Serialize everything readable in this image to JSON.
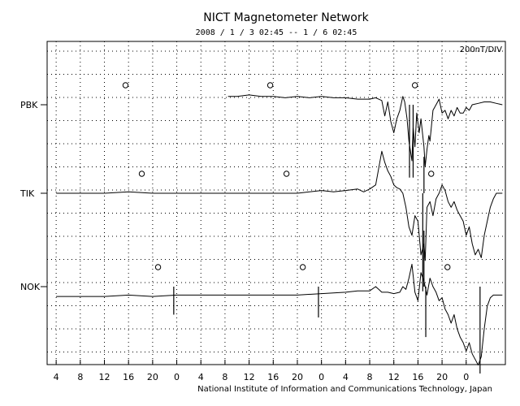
{
  "chart_data": {
    "type": "line",
    "title": "NICT Magnetometer Network",
    "subtitle": "2008 / 1 / 3  02:45 -- 1 / 6  02:45",
    "scale_label": "200nT/DIV",
    "credit": "National Institute of Information and Communications Technology, Japan",
    "x_tick_labels": [
      "4",
      "8",
      "12",
      "16",
      "20",
      "0",
      "4",
      "8",
      "12",
      "16",
      "20",
      "0",
      "4",
      "8",
      "12",
      "16",
      "20",
      "0"
    ],
    "grid": true,
    "stations": [
      {
        "name": "PBK",
        "noon_marker_hours": [
          11.5,
          35.5,
          59.5
        ],
        "trace": [
          [
            28.5,
            0.3
          ],
          [
            30,
            0.3
          ],
          [
            32,
            0.35
          ],
          [
            34,
            0.3
          ],
          [
            36,
            0.3
          ],
          [
            38,
            0.25
          ],
          [
            40,
            0.3
          ],
          [
            42,
            0.25
          ],
          [
            44,
            0.3
          ],
          [
            46,
            0.25
          ],
          [
            48,
            0.25
          ],
          [
            50,
            0.2
          ],
          [
            52,
            0.2
          ],
          [
            53,
            0.25
          ],
          [
            54,
            0.15
          ],
          [
            54.5,
            -0.4
          ],
          [
            55,
            0.1
          ],
          [
            55.5,
            -0.6
          ],
          [
            56,
            -1.0
          ],
          [
            56.5,
            -0.5
          ],
          [
            57,
            -0.2
          ],
          [
            57.5,
            0.3
          ],
          [
            57.8,
            0.1
          ],
          [
            58.2,
            -0.5
          ],
          [
            58.5,
            -1.3
          ],
          [
            59,
            -2.0
          ],
          [
            59.2,
            -0.8
          ],
          [
            59.5,
            -1.5
          ],
          [
            59.8,
            -0.3
          ],
          [
            60.2,
            -1.0
          ],
          [
            60.5,
            -0.5
          ],
          [
            61,
            -1.5
          ],
          [
            61.2,
            -2.2
          ],
          [
            61.5,
            -1.6
          ],
          [
            61.8,
            -1.1
          ],
          [
            62,
            -1.3
          ],
          [
            62.5,
            -0.2
          ],
          [
            63,
            0.0
          ],
          [
            63.5,
            0.2
          ],
          [
            64,
            -0.3
          ],
          [
            64.5,
            -0.2
          ],
          [
            65,
            -0.5
          ],
          [
            65.5,
            -0.2
          ],
          [
            66,
            -0.4
          ],
          [
            66.5,
            -0.1
          ],
          [
            67,
            -0.3
          ],
          [
            67.5,
            -0.3
          ],
          [
            68,
            -0.1
          ],
          [
            68.5,
            -0.2
          ],
          [
            69,
            0.0
          ],
          [
            70,
            0.05
          ],
          [
            71,
            0.1
          ],
          [
            72,
            0.1
          ],
          [
            73,
            0.05
          ],
          [
            74,
            0.0
          ]
        ],
        "spikes": [
          [
            58.6,
            -2.6
          ],
          [
            59.2,
            -2.6
          ]
        ]
      },
      {
        "name": "TIK",
        "noon_marker_hours": [
          14.2,
          38.2,
          62.2
        ],
        "trace": [
          [
            0,
            0.0
          ],
          [
            4,
            0.0
          ],
          [
            8,
            0.0
          ],
          [
            12,
            0.05
          ],
          [
            16,
            0.0
          ],
          [
            20,
            0.0
          ],
          [
            24,
            0.0
          ],
          [
            28,
            0.0
          ],
          [
            32,
            0.0
          ],
          [
            36,
            0.0
          ],
          [
            40,
            0.0
          ],
          [
            42,
            0.05
          ],
          [
            44,
            0.1
          ],
          [
            46,
            0.05
          ],
          [
            48,
            0.1
          ],
          [
            50,
            0.15
          ],
          [
            51,
            0.05
          ],
          [
            52,
            0.15
          ],
          [
            53,
            0.3
          ],
          [
            54,
            1.5
          ],
          [
            54.5,
            1.1
          ],
          [
            55,
            0.8
          ],
          [
            55.5,
            0.6
          ],
          [
            56,
            0.3
          ],
          [
            56.5,
            0.2
          ],
          [
            57,
            0.15
          ],
          [
            57.5,
            0.0
          ],
          [
            58,
            -0.5
          ],
          [
            58.5,
            -1.2
          ],
          [
            59,
            -1.5
          ],
          [
            59.5,
            -0.8
          ],
          [
            60,
            -1.0
          ],
          [
            60.5,
            -2.2
          ],
          [
            61,
            -1.8
          ],
          [
            61.2,
            -2.4
          ],
          [
            61.5,
            -0.5
          ],
          [
            62,
            -0.3
          ],
          [
            62.5,
            -0.8
          ],
          [
            63,
            -0.2
          ],
          [
            63.5,
            0.0
          ],
          [
            64,
            0.3
          ],
          [
            64.5,
            0.1
          ],
          [
            65,
            -0.3
          ],
          [
            65.5,
            -0.5
          ],
          [
            66,
            -0.3
          ],
          [
            66.5,
            -0.6
          ],
          [
            67,
            -0.8
          ],
          [
            67.5,
            -1.0
          ],
          [
            68,
            -1.5
          ],
          [
            68.5,
            -1.2
          ],
          [
            69,
            -1.8
          ],
          [
            69.5,
            -2.2
          ],
          [
            70,
            -2.0
          ],
          [
            70.5,
            -2.3
          ],
          [
            71,
            -1.5
          ],
          [
            71.5,
            -1.0
          ],
          [
            72,
            -0.5
          ],
          [
            72.5,
            -0.2
          ],
          [
            73,
            0.0
          ],
          [
            74,
            0.0
          ]
        ],
        "spikes": [
          [
            60.8,
            -3.5
          ],
          [
            61.0,
            1.3
          ]
        ]
      },
      {
        "name": "NOK",
        "noon_marker_hours": [
          16.9,
          40.9,
          64.9
        ],
        "trace": [
          [
            0,
            -0.35
          ],
          [
            4,
            -0.35
          ],
          [
            8,
            -0.35
          ],
          [
            12,
            -0.3
          ],
          [
            16,
            -0.35
          ],
          [
            20,
            -0.3
          ],
          [
            24,
            -0.3
          ],
          [
            28,
            -0.3
          ],
          [
            32,
            -0.3
          ],
          [
            36,
            -0.3
          ],
          [
            40,
            -0.3
          ],
          [
            44,
            -0.25
          ],
          [
            48,
            -0.2
          ],
          [
            50,
            -0.15
          ],
          [
            52,
            -0.15
          ],
          [
            53,
            0.0
          ],
          [
            53.5,
            -0.1
          ],
          [
            54,
            -0.2
          ],
          [
            55,
            -0.2
          ],
          [
            56,
            -0.25
          ],
          [
            57,
            -0.2
          ],
          [
            57.5,
            0.0
          ],
          [
            58,
            -0.1
          ],
          [
            58.5,
            0.3
          ],
          [
            59,
            0.8
          ],
          [
            59.5,
            -0.2
          ],
          [
            60,
            -0.5
          ],
          [
            60.5,
            0.5
          ],
          [
            61,
            0.2
          ],
          [
            61.5,
            -0.3
          ],
          [
            62,
            0.3
          ],
          [
            62.5,
            0.0
          ],
          [
            63,
            -0.2
          ],
          [
            63.5,
            -0.5
          ],
          [
            64,
            -0.4
          ],
          [
            64.5,
            -0.8
          ],
          [
            65,
            -1.0
          ],
          [
            65.5,
            -1.3
          ],
          [
            66,
            -1.0
          ],
          [
            66.5,
            -1.5
          ],
          [
            67,
            -1.8
          ],
          [
            67.5,
            -2.0
          ],
          [
            68,
            -2.3
          ],
          [
            68.5,
            -2.0
          ],
          [
            69,
            -2.4
          ],
          [
            69.5,
            -2.6
          ],
          [
            70,
            -2.8
          ],
          [
            70.5,
            -2.5
          ],
          [
            71,
            -1.5
          ],
          [
            71.5,
            -0.7
          ],
          [
            72,
            -0.4
          ],
          [
            72.5,
            -0.3
          ],
          [
            73,
            -0.3
          ],
          [
            74,
            -0.3
          ]
        ],
        "spikes": [
          [
            19.5,
            -1.0
          ],
          [
            43.5,
            -1.1
          ],
          [
            61.0,
            2.0
          ],
          [
            61.3,
            -1.8
          ],
          [
            70.3,
            -3.1
          ]
        ]
      }
    ],
    "x_range_hours": [
      -1.5,
      74.5
    ],
    "y_unit": "200nT per division"
  }
}
